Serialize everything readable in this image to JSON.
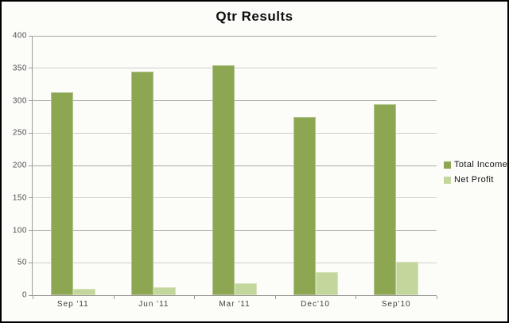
{
  "title": "Qtr Results",
  "chart_data": {
    "type": "bar",
    "title": "Qtr Results",
    "categories": [
      "Sep '11",
      "Jun '11",
      "Mar '11",
      "Dec'10",
      "Sep'10"
    ],
    "series": [
      {
        "name": "Total Income",
        "color": "#8CA652",
        "values": [
          313,
          345,
          355,
          275,
          295
        ]
      },
      {
        "name": "Net Profit",
        "color": "#C3D69B",
        "values": [
          10,
          12,
          19,
          35,
          52
        ]
      }
    ],
    "xlabel": "",
    "ylabel": "",
    "ylim": [
      0,
      400
    ],
    "ytick_step": 50,
    "grid": true,
    "legend_position": "right",
    "colors": {
      "frame_border": "#000000",
      "canvas_background": "#fcfdf9",
      "axis_line": "#9a9a96",
      "gridline_major": "#a8a8a4",
      "gridline_minor": "#cfcfca",
      "tick_label": "#4e4e4e"
    }
  }
}
